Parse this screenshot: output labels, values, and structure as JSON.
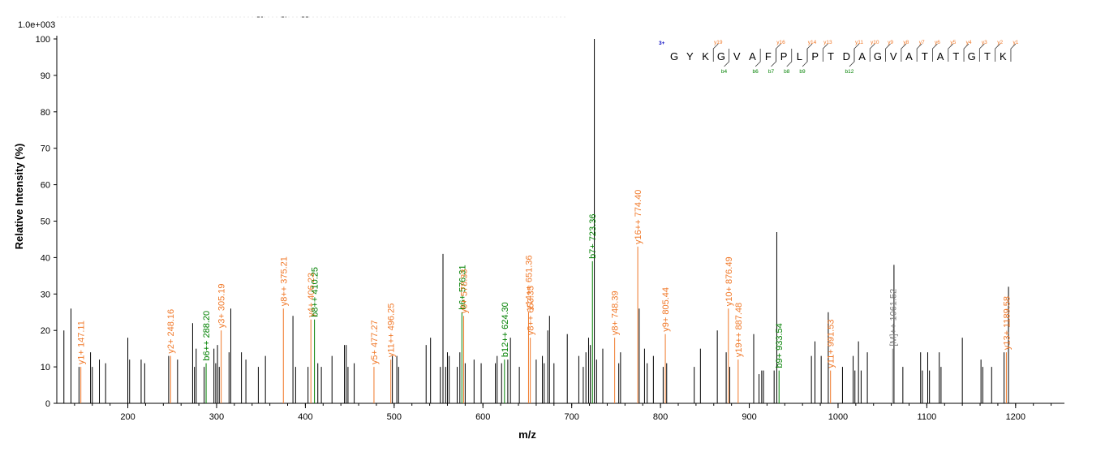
{
  "chart_data": {
    "type": "bar",
    "title": "",
    "xlabel": "m/z",
    "ylabel": "Relative   Intensity (%)",
    "scale_label": "1.0e+003",
    "xlim": [
      120,
      1255
    ],
    "ylim": [
      0,
      100
    ],
    "x_ticks": [
      200,
      300,
      400,
      500,
      600,
      700,
      800,
      900,
      1000,
      1100,
      1200
    ],
    "y_ticks": [
      0,
      10,
      20,
      30,
      40,
      50,
      60,
      70,
      80,
      90,
      100
    ],
    "colors": {
      "unassigned": "#000000",
      "y_ion": "#f07828",
      "b_ion": "#008000",
      "precursor": "#808080",
      "charge_state": "#0000c0"
    },
    "peaks": [
      {
        "x": 120,
        "y": 37,
        "ion": "none"
      },
      {
        "x": 128,
        "y": 20,
        "ion": "none"
      },
      {
        "x": 136,
        "y": 26,
        "ion": "none"
      },
      {
        "x": 145,
        "y": 10,
        "ion": "none"
      },
      {
        "x": 147.11,
        "y": 10,
        "ion": "y",
        "label": "y1+ 147.11"
      },
      {
        "x": 158,
        "y": 14,
        "ion": "none"
      },
      {
        "x": 160,
        "y": 10,
        "ion": "none"
      },
      {
        "x": 168,
        "y": 12,
        "ion": "none"
      },
      {
        "x": 175,
        "y": 11,
        "ion": "none"
      },
      {
        "x": 200,
        "y": 18,
        "ion": "none"
      },
      {
        "x": 202,
        "y": 12,
        "ion": "none"
      },
      {
        "x": 215,
        "y": 12,
        "ion": "none"
      },
      {
        "x": 219,
        "y": 11,
        "ion": "none"
      },
      {
        "x": 246,
        "y": 13,
        "ion": "none"
      },
      {
        "x": 248.16,
        "y": 13,
        "ion": "y",
        "label": "y2+ 248.16"
      },
      {
        "x": 256,
        "y": 12,
        "ion": "none"
      },
      {
        "x": 273,
        "y": 22,
        "ion": "none"
      },
      {
        "x": 275,
        "y": 10,
        "ion": "none"
      },
      {
        "x": 277,
        "y": 15,
        "ion": "none"
      },
      {
        "x": 286,
        "y": 10,
        "ion": "none"
      },
      {
        "x": 288.2,
        "y": 11,
        "ion": "b",
        "label": "b6++ 288.20"
      },
      {
        "x": 297,
        "y": 15,
        "ion": "none"
      },
      {
        "x": 299,
        "y": 11,
        "ion": "none"
      },
      {
        "x": 301,
        "y": 16,
        "ion": "none"
      },
      {
        "x": 303,
        "y": 10,
        "ion": "none"
      },
      {
        "x": 305.19,
        "y": 20,
        "ion": "y",
        "label": "y3+ 305.19"
      },
      {
        "x": 314,
        "y": 14,
        "ion": "none"
      },
      {
        "x": 316,
        "y": 26,
        "ion": "none"
      },
      {
        "x": 328,
        "y": 14,
        "ion": "none"
      },
      {
        "x": 333,
        "y": 12,
        "ion": "none"
      },
      {
        "x": 347,
        "y": 10,
        "ion": "none"
      },
      {
        "x": 355,
        "y": 13,
        "ion": "none"
      },
      {
        "x": 375.21,
        "y": 26,
        "ion": "y",
        "label": "y8++ 375.21"
      },
      {
        "x": 386,
        "y": 24,
        "ion": "none"
      },
      {
        "x": 389,
        "y": 10,
        "ion": "none"
      },
      {
        "x": 403,
        "y": 10,
        "ion": "none"
      },
      {
        "x": 406.23,
        "y": 23,
        "ion": "y",
        "label": "y4+ 406.23"
      },
      {
        "x": 410.25,
        "y": 23,
        "ion": "b",
        "label": "b8++ 410.25"
      },
      {
        "x": 414,
        "y": 11,
        "ion": "none"
      },
      {
        "x": 418,
        "y": 10,
        "ion": "none"
      },
      {
        "x": 430,
        "y": 13,
        "ion": "none"
      },
      {
        "x": 444,
        "y": 16,
        "ion": "none"
      },
      {
        "x": 446,
        "y": 16,
        "ion": "none"
      },
      {
        "x": 448,
        "y": 10,
        "ion": "none"
      },
      {
        "x": 455,
        "y": 11,
        "ion": "none"
      },
      {
        "x": 477.27,
        "y": 10,
        "ion": "y",
        "label": "y5+ 477.27"
      },
      {
        "x": 496.25,
        "y": 12,
        "ion": "y",
        "label": "y11++ 496.25"
      },
      {
        "x": 498,
        "y": 13,
        "ion": "none"
      },
      {
        "x": 503,
        "y": 13,
        "ion": "none"
      },
      {
        "x": 505,
        "y": 10,
        "ion": "none"
      },
      {
        "x": 536,
        "y": 16,
        "ion": "none"
      },
      {
        "x": 541,
        "y": 18,
        "ion": "none"
      },
      {
        "x": 552,
        "y": 10,
        "ion": "none"
      },
      {
        "x": 555,
        "y": 41,
        "ion": "none"
      },
      {
        "x": 558,
        "y": 10,
        "ion": "none"
      },
      {
        "x": 560,
        "y": 14,
        "ion": "none"
      },
      {
        "x": 562,
        "y": 13,
        "ion": "none"
      },
      {
        "x": 571,
        "y": 10,
        "ion": "none"
      },
      {
        "x": 574,
        "y": 14,
        "ion": "none"
      },
      {
        "x": 576.31,
        "y": 25,
        "ion": "b",
        "label": "b6+ 576.31"
      },
      {
        "x": 578.33,
        "y": 24,
        "ion": "y",
        "label": "y6+ 578.33"
      },
      {
        "x": 580,
        "y": 11,
        "ion": "none"
      },
      {
        "x": 590,
        "y": 12,
        "ion": "none"
      },
      {
        "x": 598,
        "y": 11,
        "ion": "none"
      },
      {
        "x": 614,
        "y": 11,
        "ion": "none"
      },
      {
        "x": 616,
        "y": 13,
        "ion": "none"
      },
      {
        "x": 621,
        "y": 11,
        "ion": "none"
      },
      {
        "x": 624.3,
        "y": 12,
        "ion": "b",
        "label": "b12++ 624.30"
      },
      {
        "x": 628,
        "y": 12,
        "ion": "none"
      },
      {
        "x": 631,
        "y": 18,
        "ion": "none"
      },
      {
        "x": 641,
        "y": 10,
        "ion": "none"
      },
      {
        "x": 651.36,
        "y": 25,
        "ion": "y",
        "label": "y14++ 651.36"
      },
      {
        "x": 653.35,
        "y": 18,
        "ion": "y",
        "label": "y8++ 653.35"
      },
      {
        "x": 660,
        "y": 12,
        "ion": "none"
      },
      {
        "x": 667,
        "y": 13,
        "ion": "none"
      },
      {
        "x": 669,
        "y": 11,
        "ion": "none"
      },
      {
        "x": 673,
        "y": 20,
        "ion": "none"
      },
      {
        "x": 675,
        "y": 24,
        "ion": "none"
      },
      {
        "x": 680,
        "y": 11,
        "ion": "none"
      },
      {
        "x": 695,
        "y": 19,
        "ion": "none"
      },
      {
        "x": 708,
        "y": 13,
        "ion": "none"
      },
      {
        "x": 713,
        "y": 10,
        "ion": "none"
      },
      {
        "x": 716,
        "y": 14,
        "ion": "none"
      },
      {
        "x": 719,
        "y": 18,
        "ion": "none"
      },
      {
        "x": 721,
        "y": 16,
        "ion": "none"
      },
      {
        "x": 723.36,
        "y": 39,
        "ion": "b",
        "label": "b7+ 723.36"
      },
      {
        "x": 725.5,
        "y": 100,
        "ion": "none"
      },
      {
        "x": 728,
        "y": 12,
        "ion": "none"
      },
      {
        "x": 735,
        "y": 15,
        "ion": "none"
      },
      {
        "x": 748.39,
        "y": 18,
        "ion": "y",
        "label": "y8+ 748.39"
      },
      {
        "x": 753,
        "y": 11,
        "ion": "none"
      },
      {
        "x": 755,
        "y": 14,
        "ion": "none"
      },
      {
        "x": 774.4,
        "y": 43,
        "ion": "y",
        "label": "y16++ 774.40"
      },
      {
        "x": 776,
        "y": 26,
        "ion": "none"
      },
      {
        "x": 782,
        "y": 15,
        "ion": "none"
      },
      {
        "x": 785,
        "y": 11,
        "ion": "none"
      },
      {
        "x": 792,
        "y": 13,
        "ion": "none"
      },
      {
        "x": 803,
        "y": 10,
        "ion": "none"
      },
      {
        "x": 805.44,
        "y": 19,
        "ion": "y",
        "label": "y9+ 805.44"
      },
      {
        "x": 807,
        "y": 11,
        "ion": "none"
      },
      {
        "x": 838,
        "y": 10,
        "ion": "none"
      },
      {
        "x": 845,
        "y": 15,
        "ion": "none"
      },
      {
        "x": 864,
        "y": 20,
        "ion": "none"
      },
      {
        "x": 874,
        "y": 14,
        "ion": "none"
      },
      {
        "x": 876.49,
        "y": 26,
        "ion": "y",
        "label": "y10+ 876.49"
      },
      {
        "x": 878,
        "y": 10,
        "ion": "none"
      },
      {
        "x": 887.48,
        "y": 12,
        "ion": "y",
        "label": "y19++ 887.48"
      },
      {
        "x": 905,
        "y": 19,
        "ion": "none"
      },
      {
        "x": 911,
        "y": 8,
        "ion": "none"
      },
      {
        "x": 914,
        "y": 9,
        "ion": "none"
      },
      {
        "x": 916,
        "y": 9,
        "ion": "none"
      },
      {
        "x": 928,
        "y": 9,
        "ion": "none"
      },
      {
        "x": 931,
        "y": 47,
        "ion": "none"
      },
      {
        "x": 933.54,
        "y": 9,
        "ion": "b",
        "label": "b9+ 933.54"
      },
      {
        "x": 970,
        "y": 13,
        "ion": "none"
      },
      {
        "x": 974,
        "y": 17,
        "ion": "none"
      },
      {
        "x": 981,
        "y": 13,
        "ion": "none"
      },
      {
        "x": 989,
        "y": 25,
        "ion": "none"
      },
      {
        "x": 991.53,
        "y": 9,
        "ion": "y",
        "label": "y11+ 991.53"
      },
      {
        "x": 1005,
        "y": 10,
        "ion": "none"
      },
      {
        "x": 1017,
        "y": 13,
        "ion": "none"
      },
      {
        "x": 1019,
        "y": 9,
        "ion": "none"
      },
      {
        "x": 1023,
        "y": 17,
        "ion": "none"
      },
      {
        "x": 1026,
        "y": 9,
        "ion": "none"
      },
      {
        "x": 1033,
        "y": 14,
        "ion": "none"
      },
      {
        "x": 1061.52,
        "y": 15,
        "ion": "precursor",
        "label": "[M]++ 1061.52"
      },
      {
        "x": 1063,
        "y": 38,
        "ion": "none"
      },
      {
        "x": 1073,
        "y": 10,
        "ion": "none"
      },
      {
        "x": 1093,
        "y": 14,
        "ion": "none"
      },
      {
        "x": 1095,
        "y": 9,
        "ion": "none"
      },
      {
        "x": 1101,
        "y": 14,
        "ion": "none"
      },
      {
        "x": 1103,
        "y": 9,
        "ion": "none"
      },
      {
        "x": 1114,
        "y": 14,
        "ion": "none"
      },
      {
        "x": 1116,
        "y": 10,
        "ion": "none"
      },
      {
        "x": 1140,
        "y": 18,
        "ion": "none"
      },
      {
        "x": 1161,
        "y": 12,
        "ion": "none"
      },
      {
        "x": 1163,
        "y": 10,
        "ion": "none"
      },
      {
        "x": 1173,
        "y": 10,
        "ion": "none"
      },
      {
        "x": 1187,
        "y": 14,
        "ion": "none"
      },
      {
        "x": 1189.58,
        "y": 14,
        "ion": "y",
        "label": "y13+ 1189.58"
      },
      {
        "x": 1192,
        "y": 32,
        "ion": "none"
      }
    ],
    "sequence_annotation": {
      "charge": "3+",
      "residues": [
        "G",
        "Y",
        "K",
        "G",
        "V",
        "A",
        "F",
        "P",
        "L",
        "P",
        "T",
        "D",
        "A",
        "G",
        "V",
        "A",
        "T",
        "A",
        "T",
        "G",
        "T",
        "K"
      ],
      "y_ions": [
        {
          "after_index": 2,
          "label": "y19"
        },
        {
          "after_index": 6,
          "label": "y16"
        },
        {
          "after_index": 8,
          "label": "y14"
        },
        {
          "after_index": 9,
          "label": "y13"
        },
        {
          "after_index": 11,
          "label": "y11"
        },
        {
          "after_index": 12,
          "label": "y10"
        },
        {
          "after_index": 13,
          "label": "y9"
        },
        {
          "after_index": 14,
          "label": "y8"
        },
        {
          "after_index": 15,
          "label": "y7"
        },
        {
          "after_index": 16,
          "label": "y6"
        },
        {
          "after_index": 17,
          "label": "y5"
        },
        {
          "after_index": 18,
          "label": "y4"
        },
        {
          "after_index": 19,
          "label": "y3"
        },
        {
          "after_index": 20,
          "label": "y2"
        },
        {
          "after_index": 21,
          "label": "y1"
        }
      ],
      "b_ions": [
        {
          "after_index": 3,
          "label": "b4"
        },
        {
          "after_index": 5,
          "label": "b6"
        },
        {
          "after_index": 6,
          "label": "b7"
        },
        {
          "after_index": 7,
          "label": "b8"
        },
        {
          "after_index": 8,
          "label": "b9"
        },
        {
          "after_index": 11,
          "label": "b12"
        }
      ]
    }
  }
}
